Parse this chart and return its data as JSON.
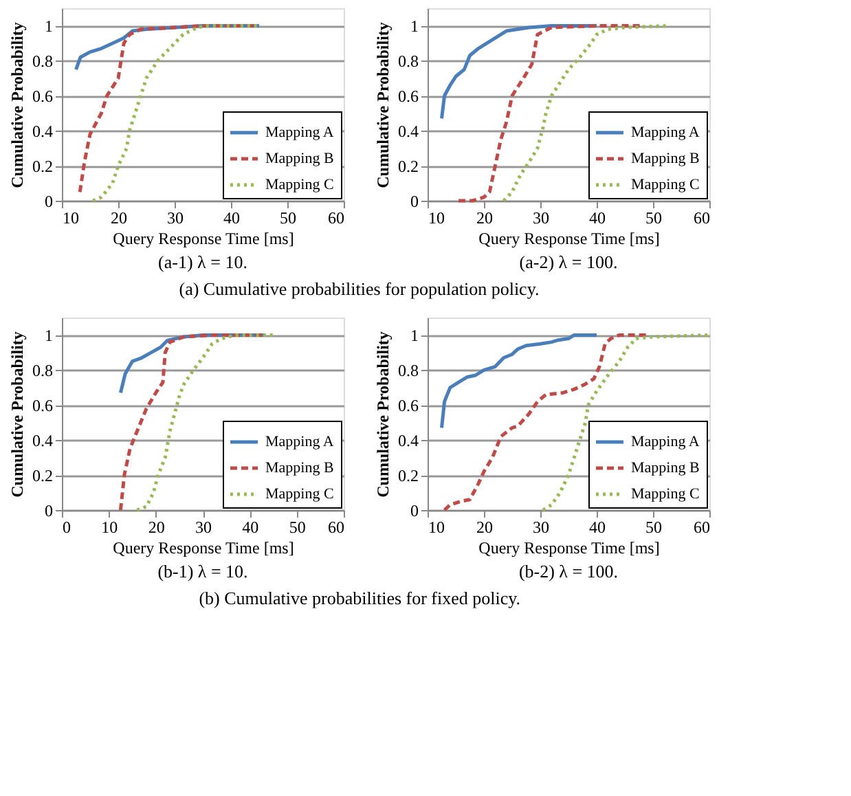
{
  "chart_data": [
    {
      "type": "line",
      "title": "(a-1) λ = 10.",
      "xlabel": "Query Response Time [ms]",
      "ylabel": "Cumulative Probability",
      "xlim": [
        10,
        60
      ],
      "xticks": [
        10,
        20,
        30,
        40,
        50,
        60
      ],
      "ylim": [
        0,
        1.1
      ],
      "yticks": [
        0,
        0.2,
        0.4,
        0.6,
        0.8,
        1
      ],
      "grid": "y",
      "legend": "bottom right",
      "marker": "none",
      "annotations": [
        "(a) Cumulative probabilities for population policy."
      ],
      "series": [
        {
          "name": "Mapping A",
          "color": "#4a7ebb",
          "line_style": "solid",
          "x": [
            12.5,
            13.3,
            15,
            17,
            19,
            21,
            22.5,
            25,
            30,
            35,
            45
          ],
          "values": [
            0.75,
            0.82,
            0.85,
            0.87,
            0.9,
            0.93,
            0.97,
            0.98,
            0.99,
            1,
            1
          ]
        },
        {
          "name": "Mapping B",
          "color": "#be4b48",
          "line_style": "dashed",
          "x": [
            13.2,
            14,
            15,
            16,
            17,
            18,
            20,
            20.5,
            21,
            22,
            24,
            30,
            35,
            44
          ],
          "values": [
            0.05,
            0.22,
            0.38,
            0.44,
            0.5,
            0.6,
            0.7,
            0.8,
            0.9,
            0.95,
            0.98,
            0.99,
            1,
            1
          ]
        },
        {
          "name": "Mapping C",
          "color": "#98b954",
          "line_style": "dotted",
          "x": [
            15.5,
            17,
            19,
            20,
            21.5,
            22,
            23,
            24,
            25,
            27,
            30,
            31.5,
            34,
            36,
            45
          ],
          "values": [
            0,
            0.02,
            0.1,
            0.2,
            0.3,
            0.4,
            0.5,
            0.6,
            0.7,
            0.8,
            0.9,
            0.95,
            0.99,
            1,
            1
          ]
        }
      ]
    },
    {
      "type": "line",
      "title": "(a-2) λ = 100.",
      "xlabel": "Query Response Time [ms]",
      "ylabel": "Cumulative Probability",
      "xlim": [
        10,
        60
      ],
      "xticks": [
        10,
        20,
        30,
        40,
        50,
        60
      ],
      "ylim": [
        0,
        1.1
      ],
      "yticks": [
        0,
        0.2,
        0.4,
        0.6,
        0.8,
        1
      ],
      "grid": "y",
      "legend": "bottom right",
      "marker": "none",
      "series": [
        {
          "name": "Mapping A",
          "color": "#4a7ebb",
          "line_style": "solid",
          "x": [
            12.5,
            13,
            14,
            15,
            16.5,
            17.5,
            19,
            21,
            23,
            24,
            28,
            32,
            40
          ],
          "values": [
            0.47,
            0.6,
            0.66,
            0.71,
            0.75,
            0.83,
            0.87,
            0.91,
            0.95,
            0.97,
            0.99,
            1,
            1
          ]
        },
        {
          "name": "Mapping B",
          "color": "#be4b48",
          "line_style": "dashed",
          "x": [
            15.5,
            18,
            20,
            21,
            22,
            23,
            24,
            25,
            27,
            28.5,
            29.5,
            32,
            40,
            48
          ],
          "values": [
            0,
            0,
            0.02,
            0.05,
            0.2,
            0.35,
            0.45,
            0.6,
            0.7,
            0.78,
            0.95,
            0.99,
            1,
            1
          ]
        },
        {
          "name": "Mapping C",
          "color": "#98b954",
          "line_style": "dotted",
          "x": [
            23.5,
            25,
            26.5,
            28,
            29.5,
            30.5,
            31,
            32,
            33,
            35,
            37,
            39,
            40,
            42,
            45,
            53
          ],
          "values": [
            0,
            0.05,
            0.15,
            0.22,
            0.3,
            0.42,
            0.5,
            0.6,
            0.65,
            0.75,
            0.82,
            0.9,
            0.95,
            0.98,
            0.99,
            1
          ]
        }
      ]
    },
    {
      "type": "line",
      "title": "(b-1) λ = 10.",
      "xlabel": "Query Response Time [ms]",
      "ylabel": "Cumulative Probability",
      "xlim": [
        0,
        60
      ],
      "xticks": [
        0,
        10,
        20,
        30,
        40,
        50,
        60
      ],
      "ylim": [
        0,
        1.1
      ],
      "yticks": [
        0,
        0.2,
        0.4,
        0.6,
        0.8,
        1
      ],
      "grid": "y",
      "legend": "bottom right",
      "marker": "none",
      "annotations": [
        "(b) Cumulative probabilities for fixed policy."
      ],
      "series": [
        {
          "name": "Mapping A",
          "color": "#4a7ebb",
          "line_style": "solid",
          "x": [
            12.5,
            13.5,
            15,
            17,
            19,
            21,
            22.5,
            26,
            30,
            43
          ],
          "values": [
            0.67,
            0.78,
            0.85,
            0.87,
            0.9,
            0.93,
            0.97,
            0.99,
            1,
            1
          ]
        },
        {
          "name": "Mapping B",
          "color": "#be4b48",
          "line_style": "dashed",
          "x": [
            12.5,
            13.3,
            14.5,
            16,
            18,
            20,
            21.5,
            22,
            23,
            26,
            32,
            43
          ],
          "values": [
            0,
            0.2,
            0.35,
            0.45,
            0.58,
            0.67,
            0.73,
            0.9,
            0.96,
            0.99,
            1,
            1
          ]
        },
        {
          "name": "Mapping C",
          "color": "#98b954",
          "line_style": "dotted",
          "x": [
            16,
            18,
            19.5,
            20.5,
            22,
            23,
            24,
            25,
            26,
            28,
            30,
            32,
            34,
            37,
            45
          ],
          "values": [
            0,
            0.02,
            0.1,
            0.2,
            0.3,
            0.45,
            0.55,
            0.65,
            0.72,
            0.8,
            0.87,
            0.95,
            0.98,
            1,
            1
          ]
        }
      ]
    },
    {
      "type": "line",
      "title": "(b-2) λ = 100.",
      "xlabel": "Query Response Time [ms]",
      "ylabel": "Cumulative Probability",
      "xlim": [
        10,
        60
      ],
      "xticks": [
        10,
        20,
        30,
        40,
        50,
        60
      ],
      "ylim": [
        0,
        1.1
      ],
      "yticks": [
        0,
        0.2,
        0.4,
        0.6,
        0.8,
        1
      ],
      "grid": "y",
      "legend": "bottom right",
      "marker": "none",
      "series": [
        {
          "name": "Mapping A",
          "color": "#4a7ebb",
          "line_style": "solid",
          "x": [
            12.5,
            13,
            14,
            15.5,
            17,
            18.5,
            20,
            22,
            23.5,
            25,
            26,
            27.5,
            30,
            32,
            33,
            35,
            36,
            40
          ],
          "values": [
            0.47,
            0.62,
            0.7,
            0.73,
            0.76,
            0.77,
            0.8,
            0.82,
            0.87,
            0.89,
            0.92,
            0.94,
            0.95,
            0.96,
            0.97,
            0.98,
            1,
            1
          ]
        },
        {
          "name": "Mapping B",
          "color": "#be4b48",
          "line_style": "dashed",
          "x": [
            13,
            14,
            16,
            17.5,
            19,
            20,
            21.5,
            23,
            25,
            26,
            28,
            29.5,
            31,
            34,
            36,
            38,
            39.5,
            40.5,
            41.5,
            42.5,
            44,
            49
          ],
          "values": [
            0,
            0.03,
            0.05,
            0.06,
            0.15,
            0.22,
            0.3,
            0.42,
            0.47,
            0.48,
            0.55,
            0.62,
            0.66,
            0.67,
            0.69,
            0.72,
            0.75,
            0.82,
            0.95,
            0.98,
            1,
            1
          ]
        },
        {
          "name": "Mapping C",
          "color": "#98b954",
          "line_style": "dotted",
          "x": [
            30.5,
            32,
            33.5,
            35,
            36,
            37,
            38,
            38.5,
            40,
            42,
            44,
            45.5,
            47,
            50,
            60
          ],
          "values": [
            0,
            0.03,
            0.1,
            0.2,
            0.3,
            0.4,
            0.5,
            0.6,
            0.68,
            0.77,
            0.85,
            0.93,
            0.98,
            0.99,
            1
          ]
        }
      ]
    }
  ]
}
